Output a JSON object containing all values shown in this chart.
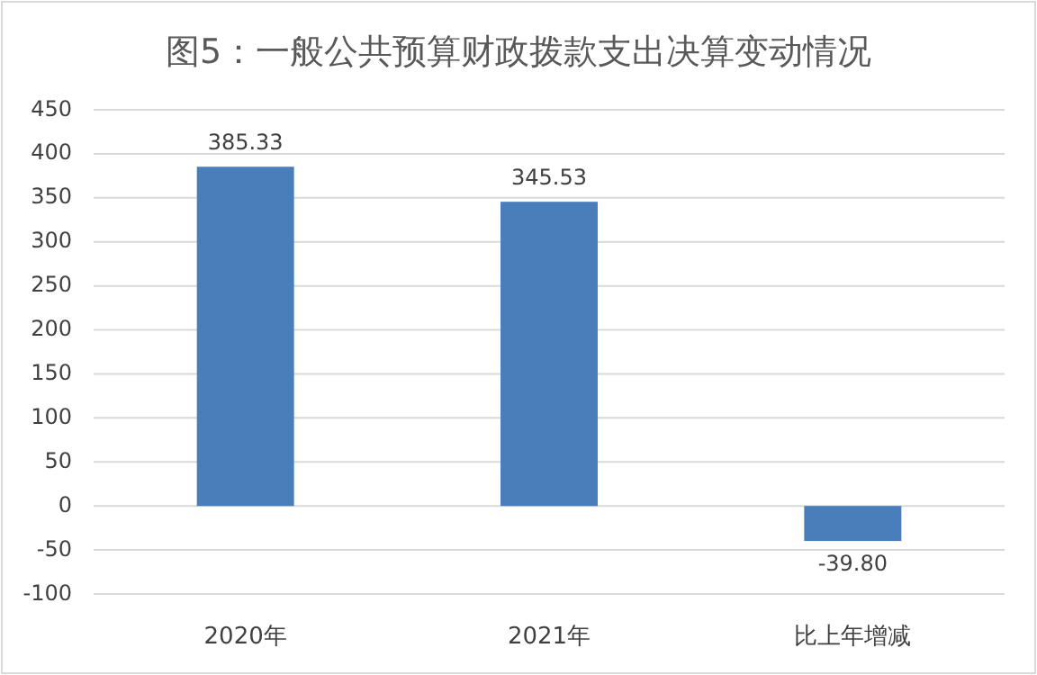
{
  "chart_data": {
    "type": "bar",
    "title": "图5：一般公共预算财政拨款支出决算变动情况",
    "categories": [
      "2020年",
      "2021年",
      "比上年增减"
    ],
    "values": [
      385.33,
      345.53,
      -39.8
    ],
    "value_labels": [
      "385.33",
      "345.53",
      "-39.80"
    ],
    "color": "#4a7ebb",
    "ylim": [
      -100,
      450
    ],
    "yticks": [
      -100,
      -50,
      0,
      50,
      100,
      150,
      200,
      250,
      300,
      350,
      400,
      450
    ],
    "grid": "y"
  }
}
